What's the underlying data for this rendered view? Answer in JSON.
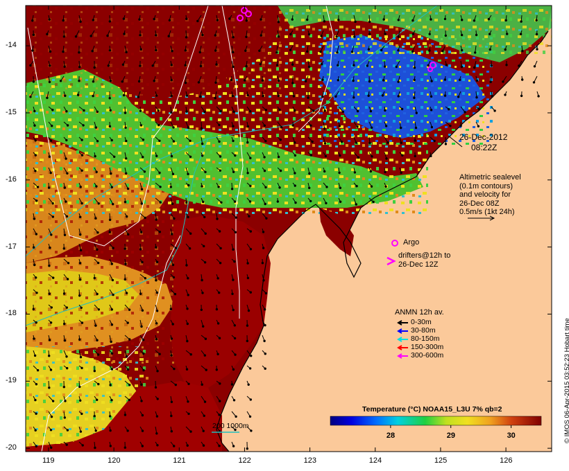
{
  "axes": {
    "lon_ticks": [
      "119",
      "120",
      "121",
      "122",
      "123",
      "124",
      "125",
      "126"
    ],
    "lat_ticks": [
      "-14",
      "-15",
      "-16",
      "-17",
      "-18",
      "-19",
      "-20"
    ],
    "lon_range": [
      118.65,
      126.7
    ],
    "lat_range": [
      -20.05,
      -13.4
    ]
  },
  "annotations": {
    "date_line1": "26-Dec-2012",
    "date_line2": "08:22Z",
    "alt_lines": [
      "Altimetric sealevel",
      "(0.1m contours)",
      "and velocity for",
      "26-Dec 08Z",
      "0.5m/s (1kt 24h)"
    ],
    "argo_label": "Argo",
    "drifters_line1": "drifters@12h to",
    "drifters_line2": "26-Dec 12Z",
    "anmn_title": "ANMN 12h av.",
    "anmn_items": [
      {
        "label": "0-30m",
        "color": "#000000"
      },
      {
        "label": "30-80m",
        "color": "#0000ff"
      },
      {
        "label": "80-150m",
        "color": "#00e0e0"
      },
      {
        "label": "150-300m",
        "color": "#ff0000"
      },
      {
        "label": "300-600m",
        "color": "#ff00ff"
      }
    ],
    "depth_legend": "200  1000m"
  },
  "colorbar": {
    "title": "Temperature (°C) NOAA15_L3U 7% qb=2",
    "ticks": [
      "28",
      "29",
      "30"
    ],
    "tick_values": [
      28,
      29,
      30
    ],
    "range": [
      27.0,
      30.5
    ]
  },
  "credit": "© IMOS 06-Apr-2015 03:52:23 Hobart time",
  "colors": {
    "land": "#fbc99a",
    "warm": "#8b0000",
    "hot_red": "#c01000",
    "orange": "#e08a1a",
    "yellow": "#f0e020",
    "green": "#30d040",
    "cyan": "#20c8e0",
    "blue": "#1040d0"
  }
}
